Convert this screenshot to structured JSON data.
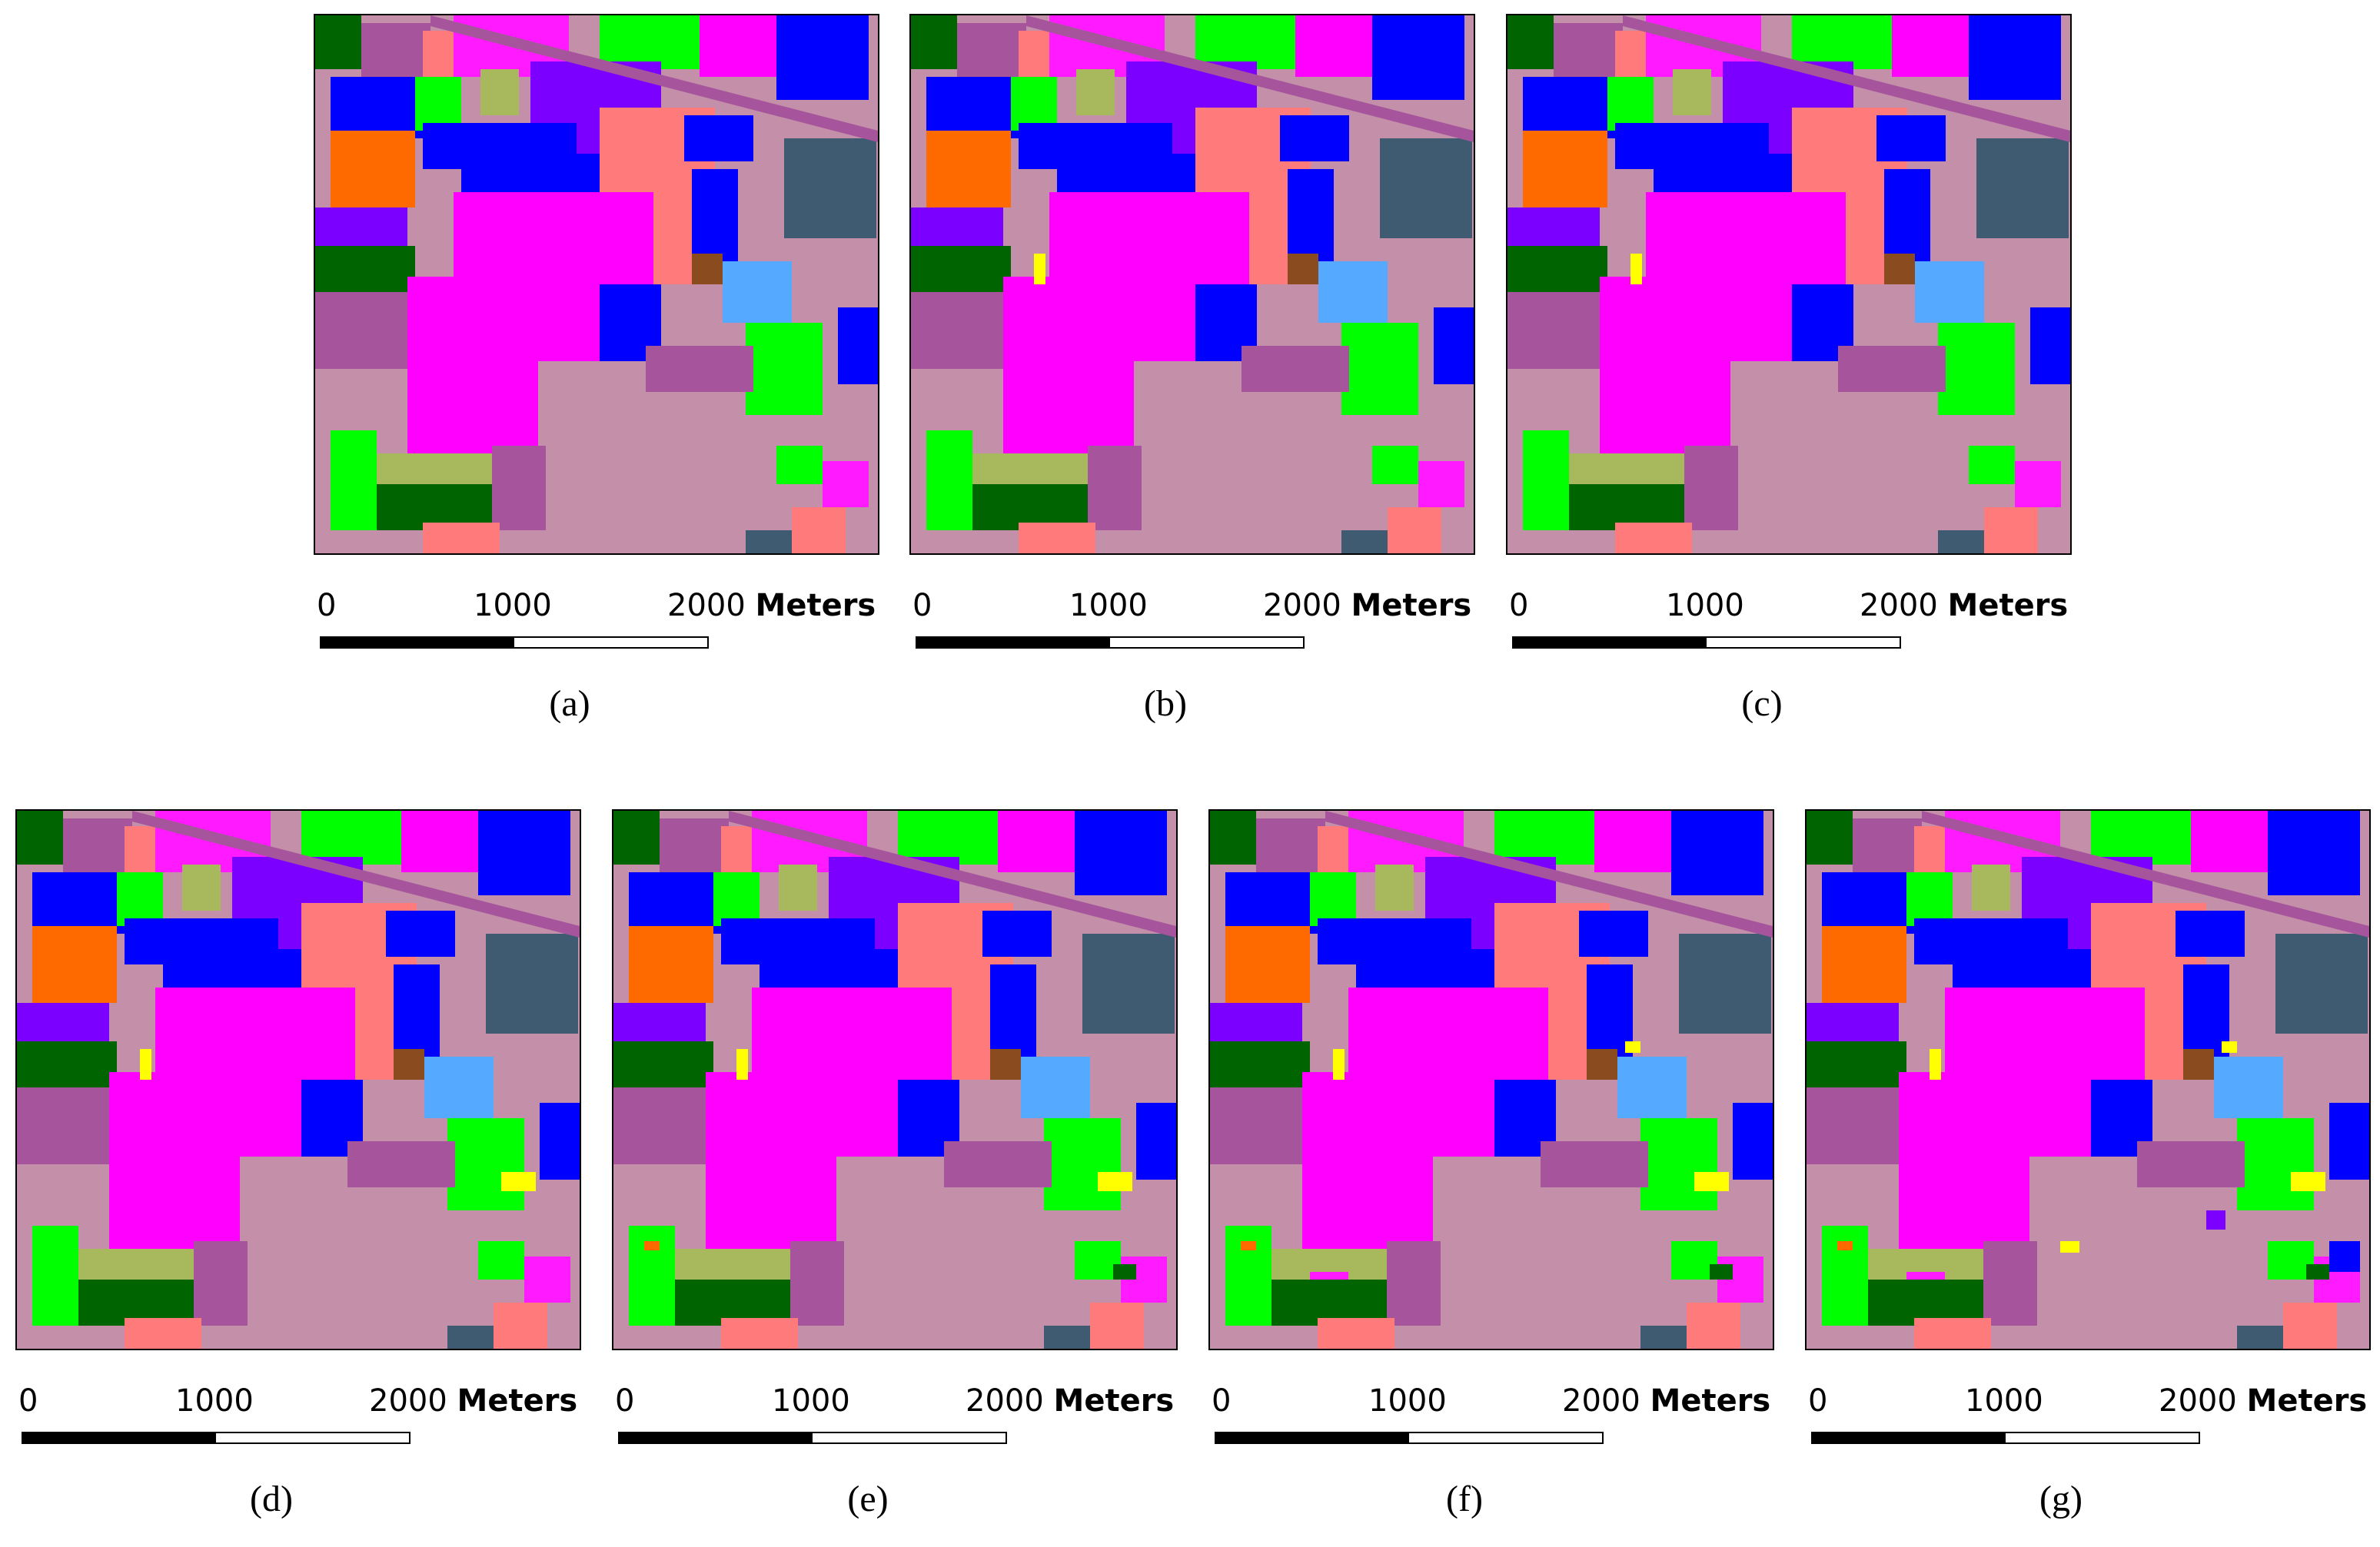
{
  "colors": {
    "background": "#00aaff",
    "pink": "#ff1aff",
    "magenta": "#ff00ff",
    "green": "#00ff00",
    "blue": "#0000ff",
    "dark_blue": "#0000e0",
    "purple": "#7b00ff",
    "dark_green": "#006400",
    "mauve": "#a6559c",
    "tan_pink": "#c48fa8",
    "salmon": "#ff7a7a",
    "slate": "#3f5b72",
    "orange": "#ff6a00",
    "olive": "#a8b85c",
    "brown": "#8a4b1f",
    "yellow": "#ffff00",
    "light_blue": "#55aaff"
  },
  "scale_bar": {
    "zero": "0",
    "mid": "1000",
    "end": "2000",
    "unit": "Meters"
  },
  "panels": [
    {
      "caption": "(a)"
    },
    {
      "caption": "(b)"
    },
    {
      "caption": "(c)"
    },
    {
      "caption": "(d)"
    },
    {
      "caption": "(e)"
    },
    {
      "caption": "(f)"
    },
    {
      "caption": "(g)"
    }
  ]
}
